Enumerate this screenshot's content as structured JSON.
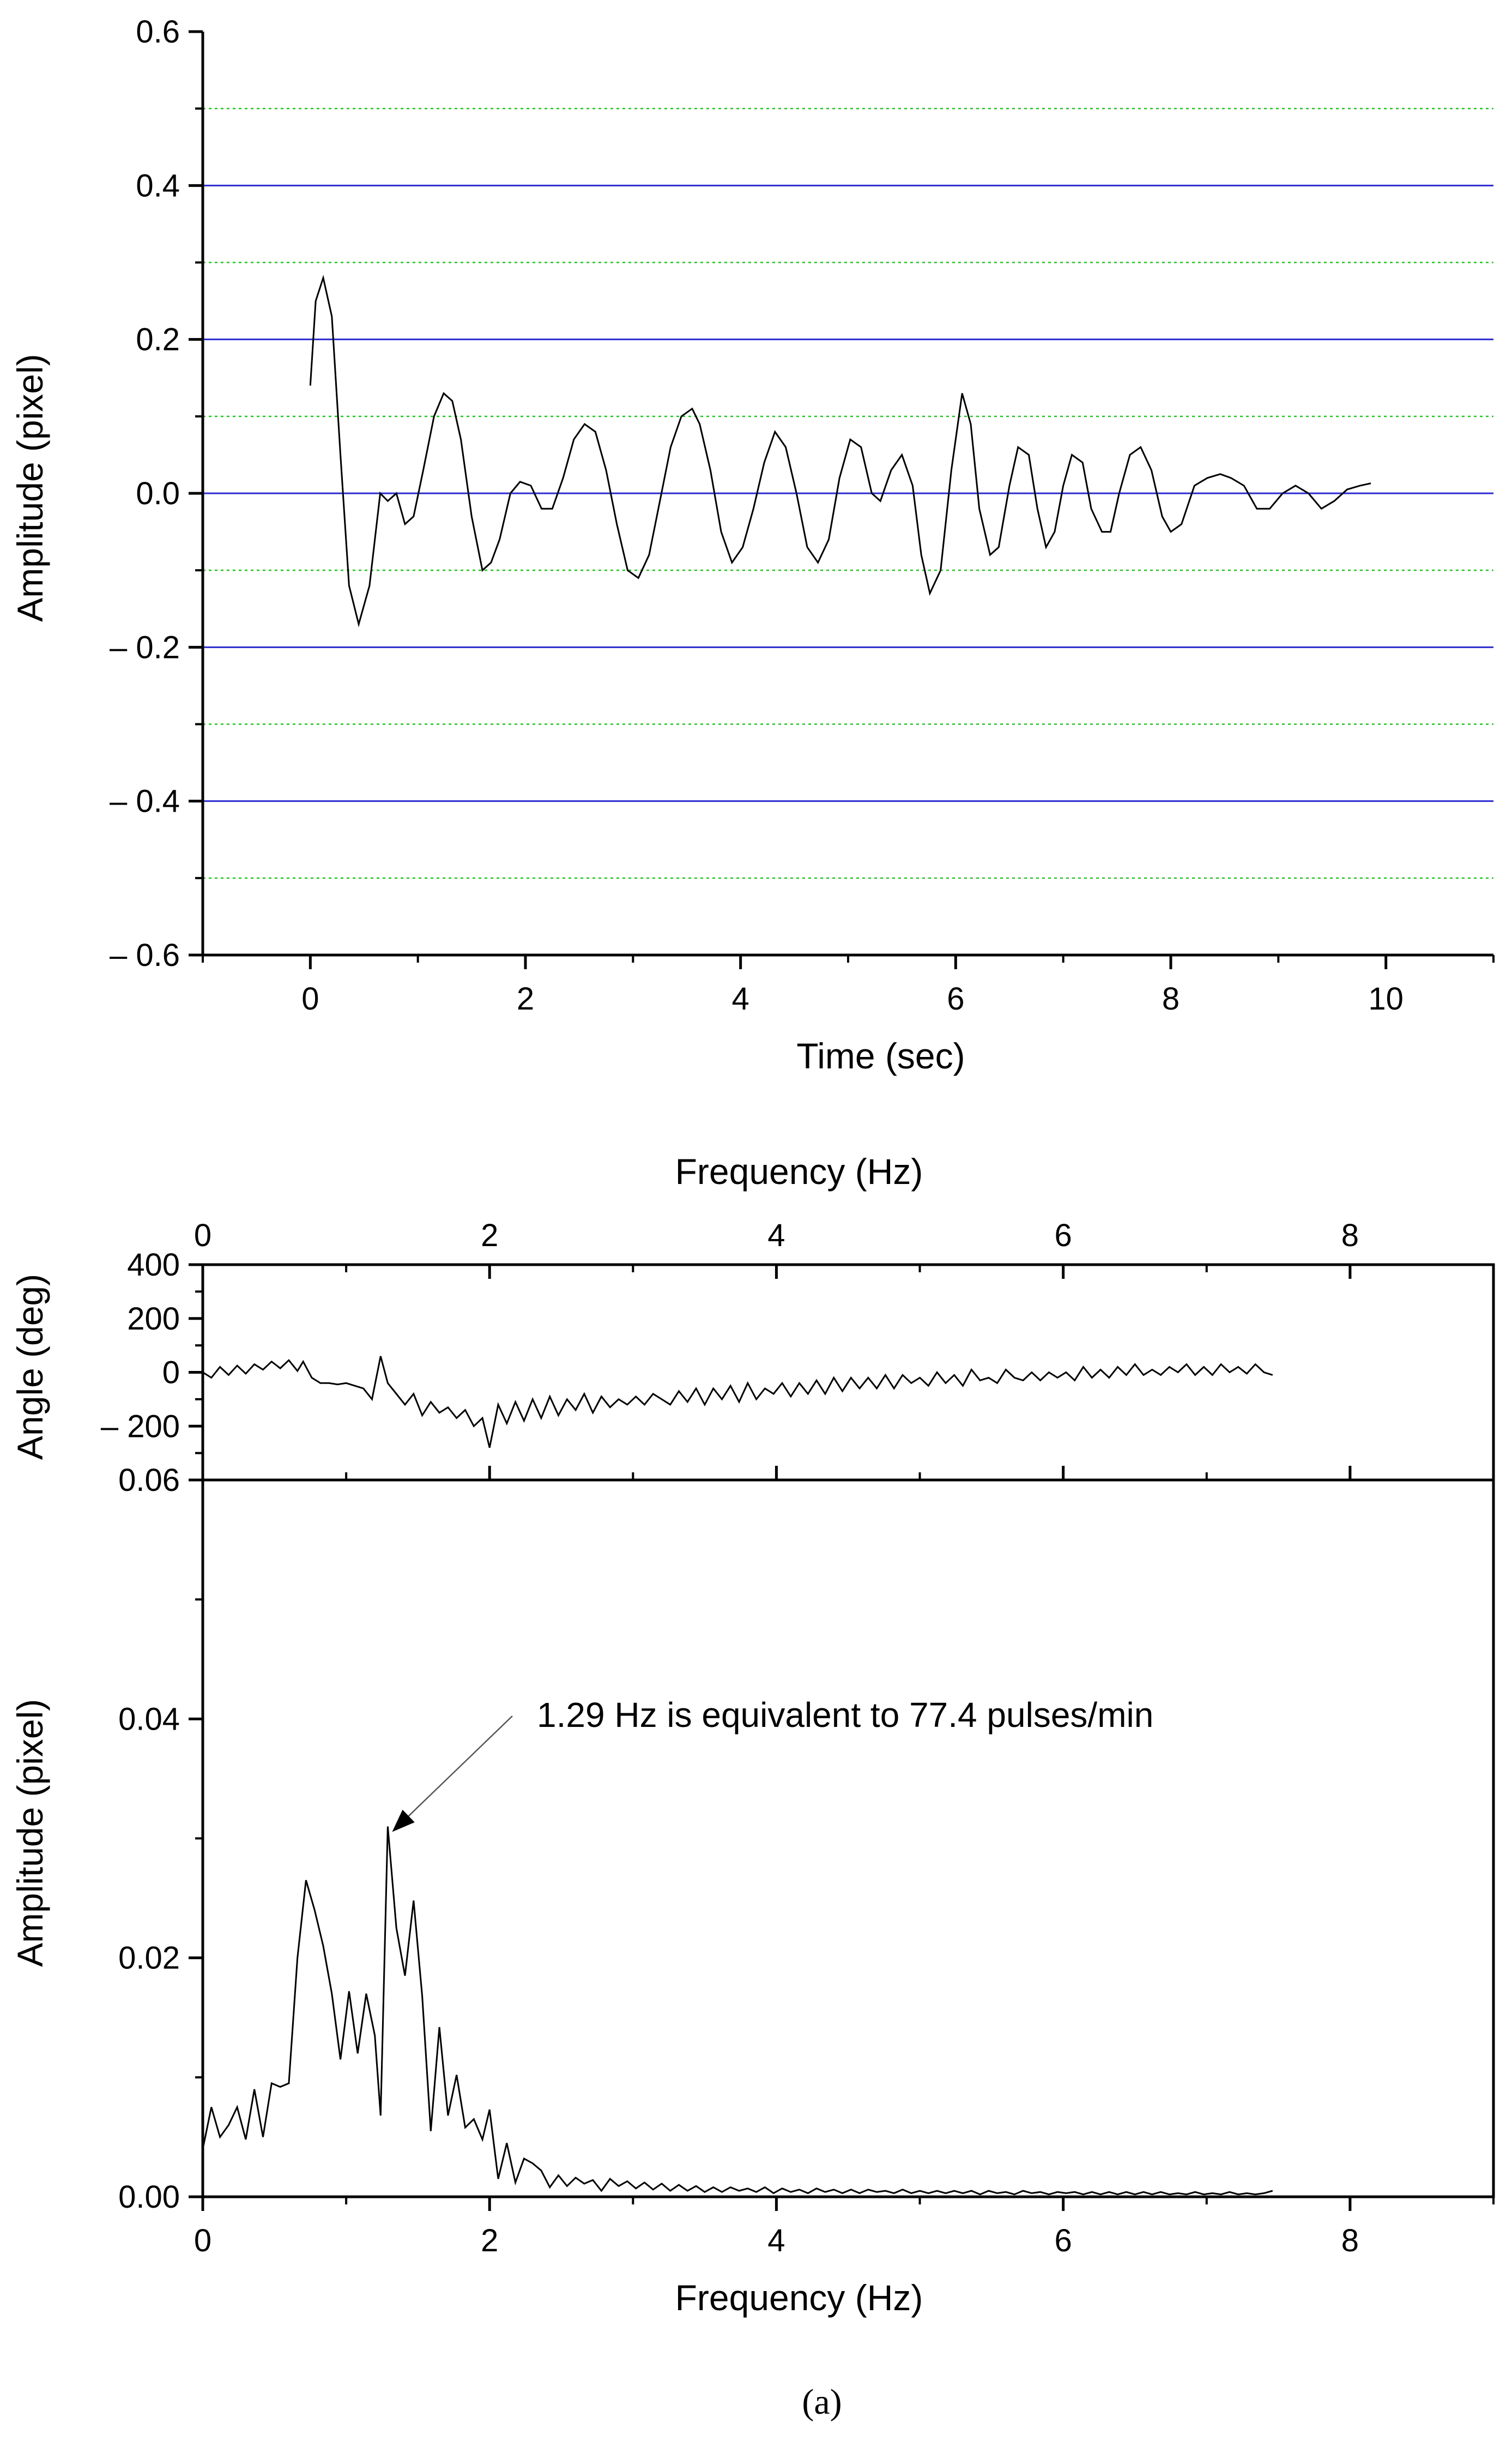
{
  "figure": {
    "caption": "(a)"
  },
  "colors": {
    "major_grid": "#2b2bd1",
    "minor_grid": "#22c422",
    "series": "#000000",
    "axis": "#000000"
  },
  "chart_data": [
    {
      "id": "time-signal",
      "type": "line",
      "xlabel": "Time (sec)",
      "ylabel": "Amplitude (pixel)",
      "xlim": [
        -1,
        11
      ],
      "ylim": [
        -0.6,
        0.6
      ],
      "xticks": [
        0,
        2,
        4,
        6,
        8,
        10
      ],
      "xtick_labels": [
        "0",
        "2",
        "4",
        "6",
        "8",
        "10"
      ],
      "yticks": [
        0.6,
        0.4,
        0.2,
        0.0,
        -0.2,
        -0.4,
        -0.6
      ],
      "ytick_labels": [
        "0.6",
        "0.4",
        "0.2",
        "0.0",
        "– 0.2",
        "– 0.4",
        "– 0.6"
      ],
      "grid_major_y": [
        0.4,
        0.2,
        0.0,
        -0.2,
        -0.4
      ],
      "grid_minor_y": [
        0.5,
        0.3,
        0.1,
        -0.1,
        -0.3,
        -0.5
      ],
      "series": [
        {
          "name": "amplitude",
          "x": [
            0,
            0.05,
            0.12,
            0.2,
            0.28,
            0.36,
            0.45,
            0.55,
            0.65,
            0.72,
            0.8,
            0.88,
            0.96,
            1.05,
            1.15,
            1.24,
            1.32,
            1.4,
            1.5,
            1.6,
            1.68,
            1.76,
            1.86,
            1.95,
            2.05,
            2.15,
            2.25,
            2.35,
            2.45,
            2.55,
            2.65,
            2.75,
            2.85,
            2.95,
            3.05,
            3.15,
            3.25,
            3.35,
            3.45,
            3.55,
            3.62,
            3.72,
            3.82,
            3.92,
            4.02,
            4.12,
            4.22,
            4.32,
            4.42,
            4.52,
            4.62,
            4.72,
            4.82,
            4.92,
            5.02,
            5.12,
            5.22,
            5.3,
            5.4,
            5.5,
            5.6,
            5.68,
            5.76,
            5.86,
            5.96,
            6.06,
            6.14,
            6.22,
            6.32,
            6.4,
            6.5,
            6.58,
            6.68,
            6.76,
            6.84,
            6.92,
            7.0,
            7.08,
            7.18,
            7.26,
            7.36,
            7.44,
            7.52,
            7.62,
            7.72,
            7.82,
            7.92,
            8.0,
            8.1,
            8.22,
            8.34,
            8.46,
            8.56,
            8.68,
            8.8,
            8.92,
            9.04,
            9.16,
            9.28,
            9.4,
            9.52,
            9.64,
            9.76,
            9.86
          ],
          "y": [
            0.14,
            0.25,
            0.28,
            0.23,
            0.05,
            -0.12,
            -0.17,
            -0.12,
            0.0,
            -0.01,
            0.0,
            -0.04,
            -0.03,
            0.03,
            0.1,
            0.13,
            0.12,
            0.07,
            -0.03,
            -0.1,
            -0.09,
            -0.06,
            0.0,
            0.015,
            0.01,
            -0.02,
            -0.02,
            0.02,
            0.07,
            0.09,
            0.08,
            0.03,
            -0.04,
            -0.1,
            -0.11,
            -0.08,
            -0.01,
            0.06,
            0.1,
            0.11,
            0.09,
            0.03,
            -0.05,
            -0.09,
            -0.07,
            -0.02,
            0.04,
            0.08,
            0.06,
            0.0,
            -0.07,
            -0.09,
            -0.06,
            0.02,
            0.07,
            0.06,
            0.0,
            -0.01,
            0.03,
            0.05,
            0.01,
            -0.08,
            -0.13,
            -0.1,
            0.03,
            0.13,
            0.09,
            -0.02,
            -0.08,
            -0.07,
            0.01,
            0.06,
            0.05,
            -0.02,
            -0.07,
            -0.05,
            0.01,
            0.05,
            0.04,
            -0.02,
            -0.05,
            -0.05,
            0.0,
            0.05,
            0.06,
            0.03,
            -0.03,
            -0.05,
            -0.04,
            0.01,
            0.02,
            0.025,
            0.02,
            0.01,
            -0.02,
            -0.02,
            0.0,
            0.01,
            0.0,
            -0.02,
            -0.01,
            0.005,
            0.01,
            0.013
          ]
        }
      ]
    },
    {
      "id": "phase-spectrum",
      "type": "line",
      "xlabel": "Frequency (Hz)",
      "ylabel": "Angle (deg)",
      "xlim": [
        0,
        9
      ],
      "ylim": [
        -400,
        400
      ],
      "xticks": [
        0,
        2,
        4,
        6,
        8
      ],
      "xtick_labels": [
        "0",
        "2",
        "4",
        "6",
        "8"
      ],
      "yticks": [
        400,
        200,
        0,
        -200
      ],
      "ytick_labels": [
        "400",
        "200",
        "0",
        "– 200"
      ],
      "series": [
        {
          "name": "angle",
          "x": [
            0.0,
            0.06,
            0.12,
            0.18,
            0.24,
            0.3,
            0.36,
            0.42,
            0.48,
            0.54,
            0.6,
            0.66,
            0.7,
            0.76,
            0.82,
            0.88,
            0.94,
            1.0,
            1.06,
            1.12,
            1.18,
            1.24,
            1.29,
            1.35,
            1.41,
            1.47,
            1.53,
            1.59,
            1.65,
            1.71,
            1.77,
            1.83,
            1.89,
            1.95,
            2.0,
            2.06,
            2.12,
            2.18,
            2.24,
            2.3,
            2.36,
            2.42,
            2.48,
            2.54,
            2.6,
            2.66,
            2.72,
            2.78,
            2.84,
            2.9,
            2.96,
            3.02,
            3.08,
            3.14,
            3.2,
            3.26,
            3.32,
            3.38,
            3.44,
            3.5,
            3.56,
            3.62,
            3.68,
            3.74,
            3.8,
            3.86,
            3.92,
            3.98,
            4.04,
            4.1,
            4.16,
            4.22,
            4.28,
            4.34,
            4.4,
            4.46,
            4.52,
            4.58,
            4.64,
            4.7,
            4.76,
            4.82,
            4.88,
            4.94,
            5.0,
            5.06,
            5.12,
            5.18,
            5.24,
            5.3,
            5.36,
            5.42,
            5.48,
            5.54,
            5.6,
            5.66,
            5.72,
            5.78,
            5.84,
            5.9,
            5.96,
            6.02,
            6.08,
            6.14,
            6.2,
            6.26,
            6.32,
            6.38,
            6.44,
            6.5,
            6.56,
            6.62,
            6.68,
            6.74,
            6.8,
            6.86,
            6.92,
            6.98,
            7.04,
            7.1,
            7.16,
            7.22,
            7.28,
            7.34,
            7.4,
            7.46
          ],
          "y": [
            0,
            -20,
            20,
            -10,
            25,
            -5,
            30,
            10,
            40,
            15,
            45,
            5,
            40,
            -20,
            -40,
            -40,
            -45,
            -40,
            -50,
            -60,
            -100,
            60,
            -40,
            -80,
            -120,
            -80,
            -160,
            -110,
            -150,
            -130,
            -170,
            -140,
            -200,
            -170,
            -280,
            -120,
            -190,
            -110,
            -180,
            -100,
            -170,
            -90,
            -160,
            -100,
            -140,
            -80,
            -150,
            -90,
            -130,
            -100,
            -120,
            -90,
            -120,
            -80,
            -100,
            -120,
            -70,
            -110,
            -60,
            -120,
            -60,
            -100,
            -50,
            -110,
            -40,
            -100,
            -60,
            -80,
            -40,
            -90,
            -40,
            -80,
            -30,
            -80,
            -20,
            -70,
            -20,
            -60,
            -20,
            -60,
            -10,
            -60,
            -10,
            -40,
            -20,
            -50,
            0,
            -40,
            -10,
            -50,
            10,
            -30,
            -20,
            -40,
            10,
            -20,
            -30,
            0,
            -30,
            0,
            -20,
            0,
            -30,
            20,
            -20,
            10,
            -20,
            20,
            -10,
            30,
            -10,
            10,
            -10,
            20,
            0,
            30,
            -10,
            20,
            -10,
            30,
            0,
            20,
            -5,
            30,
            0,
            -10
          ]
        }
      ]
    },
    {
      "id": "amplitude-spectrum",
      "type": "line",
      "xlabel": "Frequency (Hz)",
      "ylabel": "Amplitude (pixel)",
      "xlim": [
        0,
        9
      ],
      "ylim": [
        0.0,
        0.06
      ],
      "xticks": [
        0,
        2,
        4,
        6,
        8
      ],
      "xtick_labels": [
        "0",
        "2",
        "4",
        "6",
        "8"
      ],
      "yticks": [
        0.06,
        0.04,
        0.02,
        0.0
      ],
      "ytick_labels": [
        "0.06",
        "0.04",
        "0.02",
        "0.00"
      ],
      "annotation": {
        "text": "1.29 Hz is equivalent to 77.4 pulses/min",
        "x": 1.29,
        "y": 0.031
      },
      "series": [
        {
          "name": "amplitude",
          "x": [
            0.0,
            0.06,
            0.12,
            0.18,
            0.24,
            0.3,
            0.36,
            0.42,
            0.48,
            0.54,
            0.6,
            0.66,
            0.72,
            0.78,
            0.84,
            0.9,
            0.96,
            1.02,
            1.08,
            1.14,
            1.2,
            1.24,
            1.29,
            1.35,
            1.41,
            1.47,
            1.53,
            1.59,
            1.65,
            1.71,
            1.77,
            1.83,
            1.89,
            1.95,
            2.0,
            2.06,
            2.12,
            2.18,
            2.24,
            2.3,
            2.36,
            2.42,
            2.48,
            2.54,
            2.6,
            2.66,
            2.72,
            2.78,
            2.84,
            2.9,
            2.96,
            3.02,
            3.08,
            3.14,
            3.2,
            3.26,
            3.32,
            3.38,
            3.44,
            3.5,
            3.56,
            3.62,
            3.68,
            3.74,
            3.8,
            3.86,
            3.92,
            3.98,
            4.04,
            4.1,
            4.16,
            4.22,
            4.28,
            4.34,
            4.4,
            4.46,
            4.52,
            4.58,
            4.64,
            4.7,
            4.76,
            4.82,
            4.88,
            4.94,
            5.0,
            5.06,
            5.12,
            5.18,
            5.24,
            5.3,
            5.36,
            5.42,
            5.48,
            5.54,
            5.6,
            5.66,
            5.72,
            5.78,
            5.84,
            5.9,
            5.96,
            6.02,
            6.08,
            6.14,
            6.2,
            6.26,
            6.32,
            6.38,
            6.44,
            6.5,
            6.56,
            6.62,
            6.68,
            6.74,
            6.8,
            6.86,
            6.92,
            6.98,
            7.04,
            7.1,
            7.16,
            7.22,
            7.28,
            7.34,
            7.4,
            7.46
          ],
          "y": [
            0.004,
            0.0075,
            0.005,
            0.006,
            0.0075,
            0.0048,
            0.009,
            0.005,
            0.0095,
            0.0092,
            0.0095,
            0.02,
            0.0265,
            0.024,
            0.021,
            0.017,
            0.0115,
            0.0172,
            0.012,
            0.017,
            0.0135,
            0.0068,
            0.031,
            0.0225,
            0.0185,
            0.0248,
            0.0168,
            0.0055,
            0.0142,
            0.0068,
            0.0102,
            0.0058,
            0.0065,
            0.0048,
            0.0073,
            0.0015,
            0.0045,
            0.0012,
            0.0032,
            0.0028,
            0.0022,
            0.0008,
            0.0018,
            0.0009,
            0.0016,
            0.0011,
            0.0014,
            0.0005,
            0.0015,
            0.0009,
            0.0013,
            0.0007,
            0.0012,
            0.0006,
            0.0011,
            0.0005,
            0.001,
            0.0005,
            0.0009,
            0.0004,
            0.0008,
            0.0004,
            0.0008,
            0.0005,
            0.0007,
            0.0004,
            0.0008,
            0.0003,
            0.0007,
            0.0004,
            0.0006,
            0.0003,
            0.0007,
            0.0004,
            0.0006,
            0.0003,
            0.0006,
            0.0003,
            0.0006,
            0.0004,
            0.0005,
            0.0003,
            0.0006,
            0.0003,
            0.0005,
            0.0003,
            0.0005,
            0.0003,
            0.0005,
            0.0003,
            0.0005,
            0.0002,
            0.0005,
            0.0003,
            0.0004,
            0.0002,
            0.0005,
            0.0003,
            0.0004,
            0.0002,
            0.0004,
            0.0003,
            0.0004,
            0.0002,
            0.0004,
            0.0002,
            0.0004,
            0.0002,
            0.0004,
            0.0002,
            0.0004,
            0.0002,
            0.0004,
            0.0002,
            0.0003,
            0.0002,
            0.0004,
            0.0002,
            0.0003,
            0.0002,
            0.0004,
            0.0002,
            0.0003,
            0.0002,
            0.0003,
            0.0005
          ]
        }
      ]
    }
  ]
}
